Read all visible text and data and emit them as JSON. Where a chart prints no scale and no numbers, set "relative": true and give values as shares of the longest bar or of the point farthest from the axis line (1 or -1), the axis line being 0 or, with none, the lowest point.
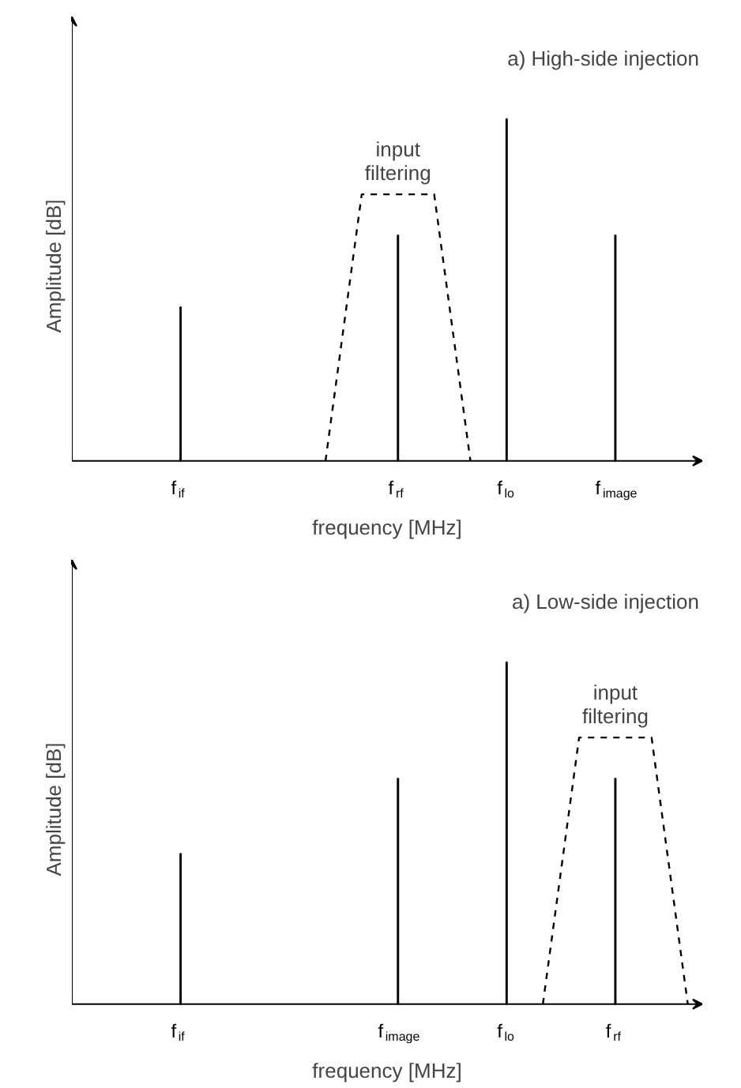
{
  "chart_data": [
    {
      "type": "bar",
      "relative": true,
      "title": "a) High-side injection",
      "xlabel": "frequency [MHz]",
      "ylabel": "Amplitude [dB]",
      "categories": [
        "f$_{if}$",
        null,
        null,
        null,
        null,
        null,
        "f$_{rf}$",
        null,
        null,
        "f$_{lo}$",
        null,
        null,
        "f$_{image}$",
        null,
        null
      ],
      "series": [
        {
          "color": "#000000",
          "values": [
            0.45,
            null,
            null,
            null,
            null,
            null,
            0.66,
            null,
            null,
            1,
            null,
            null,
            0.66,
            null,
            null
          ]
        },
        {
          "type": "line",
          "line_style": "dashed",
          "color": "#000000",
          "values": [
            null,
            null,
            null,
            null,
            0,
            0.78,
            0.78,
            0.78,
            0,
            null,
            null,
            null,
            null,
            null,
            null
          ]
        }
      ],
      "annotations": [
        "input\nfiltering"
      ]
    },
    {
      "type": "bar",
      "relative": true,
      "title": "a) Low-side injection",
      "xlabel": "frequency [MHz]",
      "ylabel": "Amplitude [dB]",
      "categories": [
        "f$_{if}$",
        null,
        null,
        null,
        null,
        null,
        "f$_{image}$",
        null,
        null,
        "f$_{lo}$",
        null,
        null,
        "f$_{rf}$",
        null,
        null
      ],
      "series": [
        {
          "color": "#000000",
          "values": [
            0.44,
            null,
            null,
            null,
            null,
            null,
            0.66,
            null,
            null,
            1,
            null,
            null,
            0.66,
            null,
            null
          ]
        },
        {
          "type": "line",
          "line_style": "dashed",
          "color": "#000000",
          "values": [
            null,
            null,
            null,
            null,
            null,
            null,
            null,
            null,
            null,
            null,
            0,
            0.78,
            0.78,
            0.78,
            0
          ]
        }
      ],
      "annotations": [
        "input\nfiltering"
      ]
    }
  ]
}
